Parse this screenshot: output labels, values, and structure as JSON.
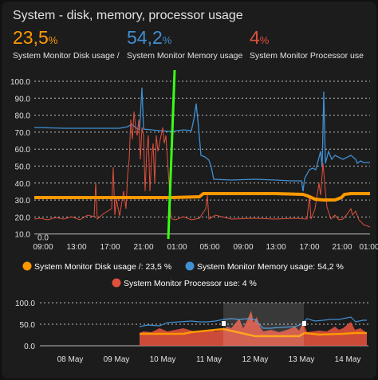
{
  "card": {
    "title": "System - disk, memory, processor usage"
  },
  "stats": [
    {
      "value": "23,5",
      "unit": "%",
      "label": "System Monitor Disk usage /",
      "color": "#ff9800"
    },
    {
      "value": "54,2",
      "unit": "%",
      "label": "System Monitor Memory usage",
      "color": "#3f8fd2"
    },
    {
      "value": "4",
      "unit": "%",
      "label": "System Monitor Processor use",
      "color": "#e0503c"
    }
  ],
  "main_chart": {
    "y_ticks": [
      "100.0",
      "90.0",
      "80.0",
      "70.0",
      "60.0",
      "50.0",
      "40.0",
      "30.0",
      "20.0",
      "10.0",
      "0.0"
    ],
    "x_ticks": [
      "09:00",
      "13:00",
      "17:00",
      "21:00",
      "01:00",
      "05:00",
      "09:00",
      "13:00",
      "17:00",
      "21:00",
      "01:00"
    ],
    "ylim": [
      0,
      100
    ]
  },
  "legend": [
    {
      "text": "System Monitor Disk usage /: 23,5 %",
      "color": "#ff9800"
    },
    {
      "text": "System Monitor Memory usage: 54,2 %",
      "color": "#3f8fd2"
    },
    {
      "text": "System Monitor Processor use: 4 %",
      "color": "#e0503c"
    }
  ],
  "nav_chart": {
    "y_ticks": [
      "100.0",
      "50.0",
      "0.0"
    ],
    "x_ticks": [
      "08 May",
      "09 May",
      "10 May",
      "11 May",
      "12 May",
      "13 May",
      "14 May"
    ]
  },
  "chart_data": [
    {
      "type": "line",
      "title": "",
      "xlabel": "",
      "ylabel": "",
      "ylim": [
        0,
        100
      ],
      "x": [
        "09:00",
        "13:00",
        "17:00",
        "21:00",
        "01:00",
        "05:00",
        "09:00",
        "13:00",
        "17:00",
        "21:00",
        "01:00"
      ],
      "series": [
        {
          "name": "System Monitor Disk usage /",
          "values": [
            22,
            22,
            22,
            22,
            22,
            24,
            24,
            24,
            24,
            20,
            23.5
          ]
        },
        {
          "name": "System Monitor Memory usage",
          "values": [
            62,
            61,
            61,
            62,
            62,
            45,
            31,
            31,
            32,
            42,
            54.2
          ]
        },
        {
          "name": "System Monitor Processor use",
          "values": [
            9,
            8,
            10,
            55,
            10,
            8,
            8,
            8,
            8,
            10,
            4
          ]
        }
      ]
    },
    {
      "type": "line",
      "title": "",
      "ylim": [
        0,
        100
      ],
      "x": [
        "08 May",
        "09 May",
        "10 May",
        "11 May",
        "12 May",
        "13 May",
        "14 May"
      ],
      "series": [
        {
          "name": "System Monitor Disk usage /",
          "values": [
            null,
            null,
            18,
            22,
            22,
            20,
            22
          ]
        },
        {
          "name": "System Monitor Memory usage",
          "values": [
            null,
            null,
            45,
            58,
            62,
            45,
            50
          ]
        },
        {
          "name": "System Monitor Processor use",
          "values": [
            null,
            null,
            15,
            15,
            30,
            12,
            15
          ]
        }
      ]
    }
  ]
}
